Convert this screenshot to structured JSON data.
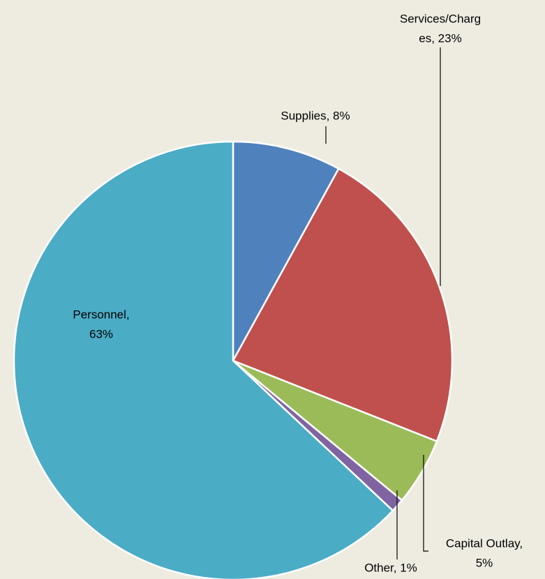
{
  "chart_data": {
    "type": "pie",
    "values": [
      8,
      23,
      5,
      1,
      63
    ],
    "value_labels": [
      [
        "Supplies, 8%"
      ],
      [
        "Services/Charg",
        "es, 23%"
      ],
      [
        "Capital Outlay,",
        "5%"
      ],
      [
        "Other, 1%"
      ],
      [
        "Personnel,",
        "63%"
      ]
    ],
    "colors": [
      "#4f81bd",
      "#c0504d",
      "#9bbb59",
      "#8064a2",
      "#4bacc6"
    ]
  }
}
